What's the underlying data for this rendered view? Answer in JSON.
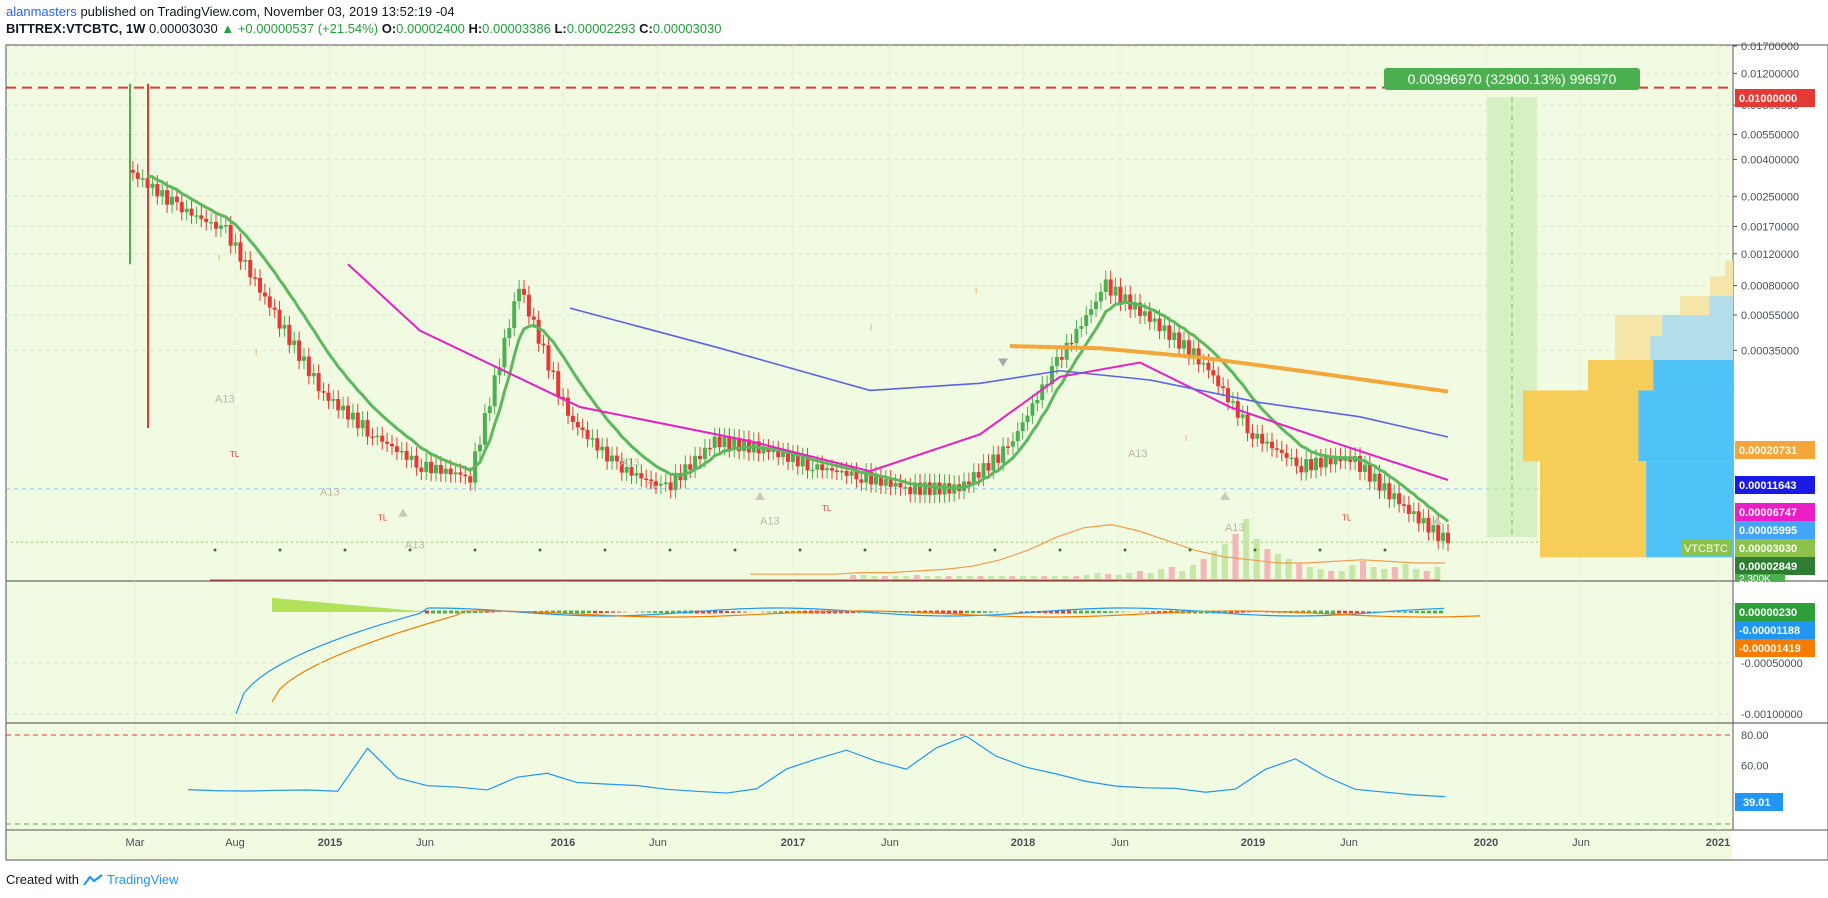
{
  "header": {
    "author": "alanmasters",
    "published": "published on TradingView.com, November 03, 2019 13:52:19 -04",
    "symbol": "BITTREX:VTCBTC, 1W",
    "last": "0.00003030",
    "change": "+0.00000537 (+21.54%)",
    "o_label": "O:",
    "o_value": "0.00002400",
    "h_label": "H:",
    "h_value": "0.00003386",
    "l_label": "L:",
    "l_value": "0.00002293",
    "c_label": "C:",
    "c_value": "0.00003030"
  },
  "footer": {
    "created_with": "Created with",
    "brand": "TradingView"
  },
  "colors": {
    "background": "#f1fbe2",
    "up": "#4caf50",
    "down": "#e53935",
    "ema_green": "#5cb85c",
    "ma_magenta": "#e91ec7",
    "ma_blue": "#5b63e8",
    "ma_orange": "#f4a63a",
    "rsi_line": "#2196f3",
    "resistance": "#e53935"
  },
  "chart_data": [
    {
      "type": "candlestick",
      "title": "BITTREX:VTCBTC, 1W",
      "scale": "log",
      "x_labels": [
        "Mar",
        "Aug",
        "2015",
        "Jun",
        "2016",
        "Jun",
        "2017",
        "Jun",
        "2018",
        "Jun",
        "2019",
        "Jun",
        "2020",
        "Jun",
        "2021"
      ],
      "y_tick_labels": [
        "0.01700000",
        "0.01200000",
        "0.00800000",
        "0.00550000",
        "0.00400000",
        "0.00250000",
        "0.00170000",
        "0.00120000",
        "0.00080000",
        "0.00055000",
        "0.00035000"
      ],
      "close_series_approx": [
        0.0035,
        0.0022,
        0.0016,
        0.00055,
        0.0002,
        0.00012,
        8e-05,
        7e-05,
        0.0008,
        0.00015,
        8e-05,
        6e-05,
        0.00011,
        0.0001,
        8e-05,
        7e-05,
        6e-05,
        6e-05,
        0.0001,
        0.0003,
        0.0008,
        0.0005,
        0.0003,
        0.00012,
        8e-05,
        9e-05,
        5e-05,
        3e-05
      ],
      "price_labels": [
        {
          "text": "0.01000000",
          "color": "#e53935"
        },
        {
          "text": "0.00020731",
          "color": "#f4a63a"
        },
        {
          "text": "0.00011643",
          "color": "#1a1ae6"
        },
        {
          "text": "0.00006747",
          "color": "#e91ec7"
        },
        {
          "text": "0.00005995",
          "color": "#42a5f5"
        },
        {
          "text": "0.00003030",
          "color": "#8bc34a"
        },
        {
          "text": "0.00002849",
          "color": "#2e7d32"
        }
      ],
      "symbol_tag": "VTCBTC",
      "volume_tag": "2.300K",
      "resistance_level": 0.01,
      "measure_label": "0.00996970 (32900.13%) 996970",
      "annotations": [
        "A13",
        "TL",
        "I"
      ]
    },
    {
      "type": "line",
      "title": "MACD",
      "y_tick_labels": [
        "-0.00050000",
        "-0.00100000"
      ],
      "value_labels": [
        {
          "text": "0.00000230",
          "color": "#2e9e3a"
        },
        {
          "text": "-0.00001188",
          "color": "#2196f3"
        },
        {
          "text": "-0.00001419",
          "color": "#f57c00"
        }
      ]
    },
    {
      "type": "line",
      "title": "RSI",
      "y_tick_labels": [
        "80.00",
        "60.00"
      ],
      "upper": 80,
      "lower": 20,
      "current_label": "39.01",
      "values": [
        44,
        44,
        43.5,
        43,
        43,
        43,
        72,
        52,
        46,
        45,
        44,
        53,
        55,
        48,
        47,
        47,
        45,
        43,
        41,
        44,
        58,
        65,
        70,
        62,
        57,
        72,
        80,
        66,
        58,
        54,
        50,
        47,
        45,
        44,
        42,
        45,
        58,
        64,
        52,
        44,
        43,
        41,
        39
      ]
    }
  ]
}
